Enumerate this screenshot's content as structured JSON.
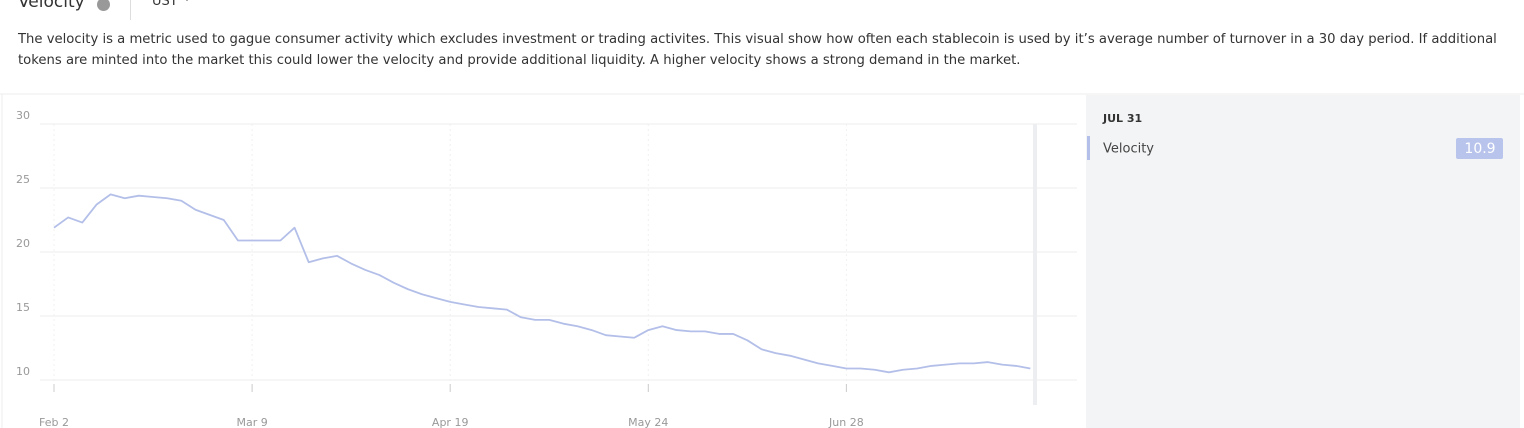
{
  "header": {
    "title": "Velocity",
    "selector": "UST"
  },
  "description": "The velocity is a metric used to gague consumer activity which excludes investment or trading activites. This visual show how often each stablecoin is used by it’s average number of turnover in a 30 day period. If additional tokens are minted into the market this could lower the velocity and provide additional liquidity. A higher velocity shows a strong demand in the market.",
  "chart_data": {
    "type": "line",
    "categories": [
      "Feb 2",
      null,
      null,
      null,
      null,
      null,
      null,
      null,
      null,
      null,
      null,
      null,
      null,
      null,
      "Mar 9",
      null,
      null,
      null,
      null,
      null,
      null,
      null,
      null,
      null,
      null,
      null,
      null,
      null,
      "Apr 19",
      null,
      null,
      null,
      null,
      null,
      null,
      null,
      null,
      null,
      null,
      null,
      null,
      null,
      "May 24",
      null,
      null,
      null,
      null,
      null,
      null,
      null,
      null,
      null,
      null,
      null,
      null,
      null,
      "Jun 28",
      null,
      null,
      null,
      null,
      null,
      null,
      null,
      null,
      null,
      null,
      null,
      null,
      null
    ],
    "series": [
      {
        "name": "Velocity",
        "color": "#b3bfe8",
        "values": [
          21.9,
          22.7,
          22.3,
          23.7,
          24.5,
          24.2,
          24.4,
          24.3,
          24.2,
          24.0,
          23.3,
          22.9,
          22.5,
          20.9,
          20.9,
          20.9,
          20.9,
          21.9,
          19.2,
          19.5,
          19.7,
          19.1,
          18.6,
          18.2,
          17.6,
          17.1,
          16.7,
          16.4,
          16.1,
          15.9,
          15.7,
          15.6,
          15.5,
          14.9,
          14.7,
          14.7,
          14.4,
          14.2,
          13.9,
          13.5,
          13.4,
          13.3,
          13.9,
          14.2,
          13.9,
          13.8,
          13.8,
          13.6,
          13.6,
          13.1,
          12.4,
          12.1,
          11.9,
          11.6,
          11.3,
          11.1,
          10.9,
          10.9,
          10.8,
          10.6,
          10.8,
          10.9,
          11.1,
          11.2,
          11.3,
          11.3,
          11.4,
          11.2,
          11.1,
          10.9
        ]
      }
    ],
    "ylim": [
      8,
      30
    ],
    "yticks": [
      10,
      15,
      20,
      25,
      30
    ],
    "grid": true
  },
  "tooltip": {
    "date": "JUL 31",
    "label": "Velocity",
    "value": 10.9
  }
}
